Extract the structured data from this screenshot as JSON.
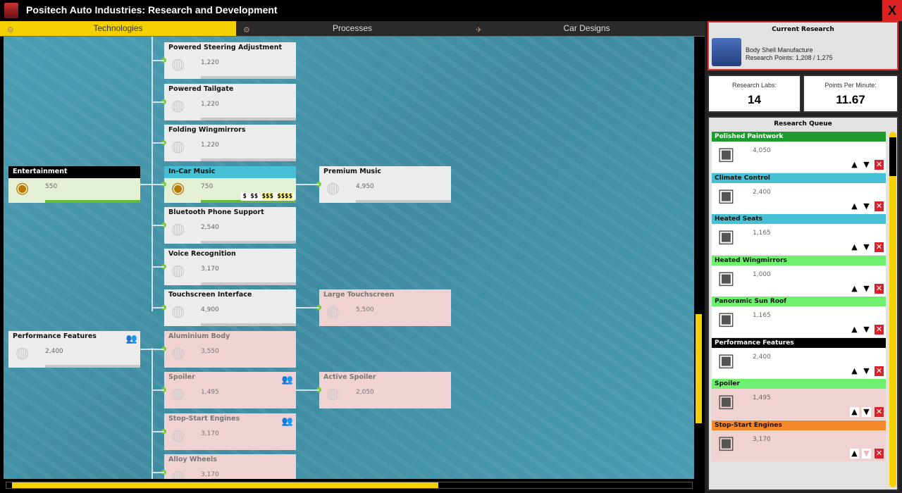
{
  "window": {
    "title": "Positech Auto Industries: Research and Development",
    "close_label": "X"
  },
  "tabs": [
    {
      "label": "Technologies",
      "active": true
    },
    {
      "label": "Processes",
      "active": false
    },
    {
      "label": "Car Designs",
      "active": false
    }
  ],
  "tree": {
    "nodes": [
      {
        "title": "Powered Steering Adjustment",
        "points": "1,220",
        "state": "available",
        "col": 1,
        "row": 0,
        "icon": "steering-wheel-icon"
      },
      {
        "title": "Powered Tailgate",
        "points": "1,220",
        "state": "available",
        "col": 1,
        "row": 1,
        "icon": "desk-icon"
      },
      {
        "title": "Folding Wingmirrors",
        "points": "1,220",
        "state": "available",
        "col": 1,
        "row": 2,
        "icon": "wingmirror-icon"
      },
      {
        "title": "Entertainment",
        "points": "550",
        "state": "done",
        "col": 0,
        "row": 3,
        "icon": "desk-icon",
        "header_color": "#000000"
      },
      {
        "title": "In-Car Music",
        "points": "750",
        "state": "done",
        "col": 1,
        "row": 3,
        "icon": "speaker-icon",
        "header_color": "#45c0d4",
        "price": [
          "$",
          "$$",
          "$$$",
          "$$$$"
        ]
      },
      {
        "title": "Premium Music",
        "points": "4,950",
        "state": "available",
        "col": 2,
        "row": 3,
        "icon": "speaker-icon"
      },
      {
        "title": "Bluetooth Phone Support",
        "points": "2,540",
        "state": "available",
        "col": 1,
        "row": 4,
        "icon": "desk-icon"
      },
      {
        "title": "Voice Recognition",
        "points": "3,170",
        "state": "available",
        "col": 1,
        "row": 5,
        "icon": "microphone-icon"
      },
      {
        "title": "Touchscreen Interface",
        "points": "4,900",
        "state": "available",
        "col": 1,
        "row": 6,
        "icon": "phone-icon"
      },
      {
        "title": "Large Touchscreen",
        "points": "5,500",
        "state": "locked",
        "col": 2,
        "row": 6,
        "icon": "screen-icon"
      },
      {
        "title": "Performance Features",
        "points": "2,400",
        "state": "available",
        "col": 0,
        "row": 7,
        "icon": "desk-icon",
        "people": true
      },
      {
        "title": "Aluminium Body",
        "points": "3,550",
        "state": "locked",
        "col": 1,
        "row": 7,
        "icon": "body-icon"
      },
      {
        "title": "Spoiler",
        "points": "1,495",
        "state": "locked",
        "col": 1,
        "row": 8,
        "icon": "desk-icon",
        "people": true
      },
      {
        "title": "Active Spoiler",
        "points": "2,050",
        "state": "locked",
        "col": 2,
        "row": 8,
        "icon": "spoiler-icon"
      },
      {
        "title": "Stop-Start Engines",
        "points": "3,170",
        "state": "locked",
        "col": 1,
        "row": 9,
        "icon": "engine-icon",
        "people": true
      },
      {
        "title": "Alloy Wheels",
        "points": "3,170",
        "state": "locked",
        "col": 1,
        "row": 10,
        "icon": "wheel-icon"
      }
    ]
  },
  "current_research": {
    "heading": "Current Research",
    "name": "Body Shell Manufacture",
    "points": "Research Points: 1,208 / 1,275",
    "progress": 0.947
  },
  "stats": {
    "labs_label": "Research Labs:",
    "labs_value": "14",
    "ppm_label": "Points Per Minute:",
    "ppm_value": "11.67"
  },
  "queue": {
    "heading": "Research Queue",
    "items": [
      {
        "title": "Polished Paintwork",
        "points": "4,050",
        "color": "#1f9a2e",
        "text": "#ffffff",
        "bg": "#ffffff",
        "icon": "paint-machine-icon"
      },
      {
        "title": "Climate Control",
        "points": "2,400",
        "color": "#45c0d4",
        "text": "#111111",
        "bg": "#ffffff",
        "icon": "fan-icon"
      },
      {
        "title": "Heated Seats",
        "points": "1,165",
        "color": "#45c0d4",
        "text": "#111111",
        "bg": "#ffffff",
        "icon": "seat-icon"
      },
      {
        "title": "Heated Wingmirrors",
        "points": "1,000",
        "color": "#6ef06e",
        "text": "#111111",
        "bg": "#ffffff",
        "icon": "wingmirror-icon"
      },
      {
        "title": "Panoramic Sun Roof",
        "points": "1,165",
        "color": "#6ef06e",
        "text": "#111111",
        "bg": "#ffffff",
        "icon": "desk-icon"
      },
      {
        "title": "Performance Features",
        "points": "2,400",
        "color": "#000000",
        "text": "#ffffff",
        "bg": "#ffffff",
        "icon": "desk-icon"
      },
      {
        "title": "Spoiler",
        "points": "1,495",
        "color": "#6ef06e",
        "text": "#111111",
        "bg": "#f0d2d2",
        "icon": "desk-icon"
      },
      {
        "title": "Stop-Start Engines",
        "points": "3,170",
        "color": "#f4892a",
        "text": "#111111",
        "bg": "#f0d2d2",
        "icon": "engine-icon",
        "last": true
      }
    ]
  },
  "colors": {
    "accent": "#f5d000",
    "close": "#d9232b"
  }
}
